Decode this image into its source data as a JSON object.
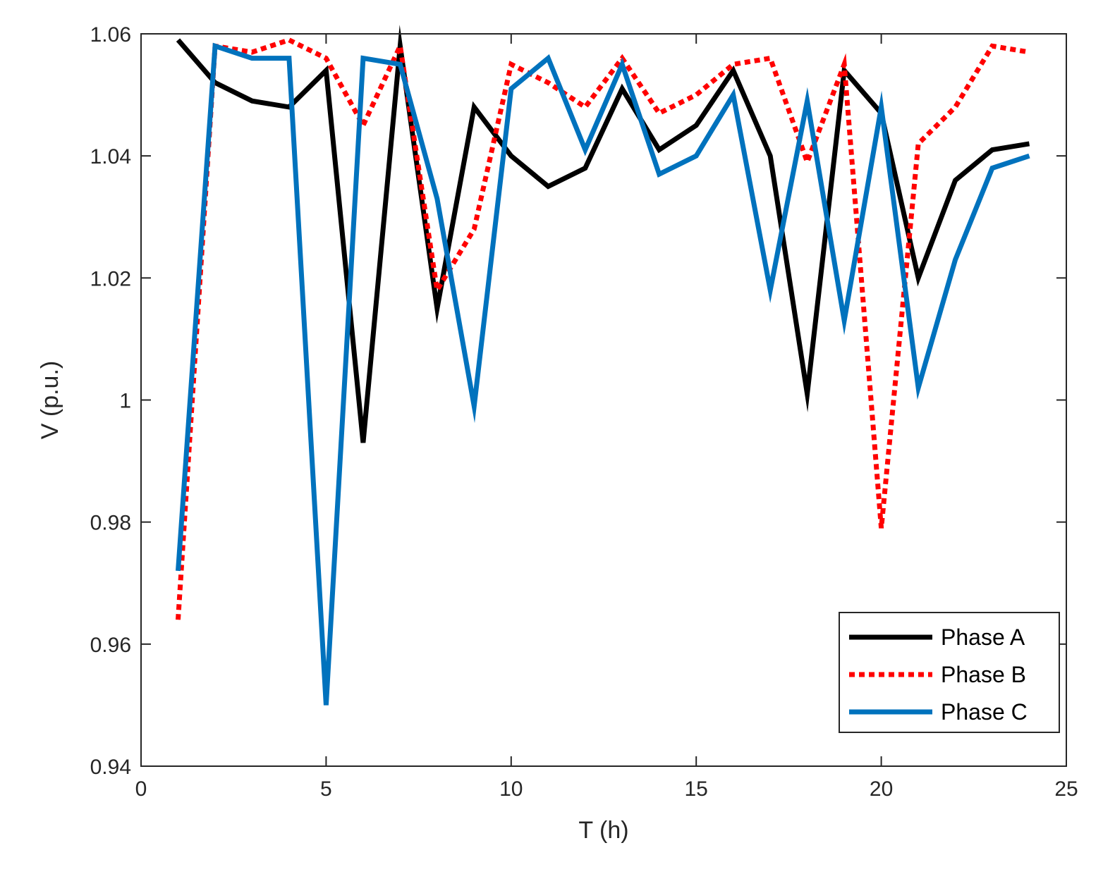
{
  "chart_data": {
    "type": "line",
    "xlabel": "T (h)",
    "ylabel": "V (p.u.)",
    "xlim": [
      0,
      25
    ],
    "ylim": [
      0.94,
      1.06
    ],
    "xticks": [
      0,
      5,
      10,
      15,
      20,
      25
    ],
    "xtick_labels": [
      "0",
      "5",
      "10",
      "15",
      "20",
      "25"
    ],
    "yticks": [
      0.94,
      0.96,
      0.98,
      1.0,
      1.02,
      1.04,
      1.06
    ],
    "ytick_labels": [
      "0.94",
      "0.96",
      "0.98",
      "1",
      "1.02",
      "1.04",
      "1.06"
    ],
    "grid": false,
    "legend_position": "bottom-right",
    "x": [
      1,
      2,
      3,
      4,
      5,
      6,
      7,
      8,
      9,
      10,
      11,
      12,
      13,
      14,
      15,
      16,
      17,
      18,
      19,
      20,
      21,
      22,
      23,
      24
    ],
    "series": [
      {
        "name": "Phase A",
        "color": "#000000",
        "style": "solid",
        "values": [
          1.059,
          1.052,
          1.049,
          1.048,
          1.054,
          0.993,
          1.058,
          1.015,
          1.048,
          1.04,
          1.035,
          1.038,
          1.051,
          1.041,
          1.045,
          1.054,
          1.04,
          1.001,
          1.054,
          1.047,
          1.02,
          1.036,
          1.041,
          1.042
        ]
      },
      {
        "name": "Phase B",
        "color": "#ff0000",
        "style": "dotted",
        "values": [
          0.964,
          1.058,
          1.057,
          1.059,
          1.056,
          1.045,
          1.058,
          1.018,
          1.028,
          1.055,
          1.052,
          1.048,
          1.056,
          1.047,
          1.05,
          1.055,
          1.056,
          1.039,
          1.055,
          0.979,
          1.042,
          1.048,
          1.058,
          1.057
        ]
      },
      {
        "name": "Phase C",
        "color": "#0072bd",
        "style": "solid",
        "values": [
          0.972,
          1.058,
          1.056,
          1.056,
          0.95,
          1.056,
          1.055,
          1.033,
          0.999,
          1.051,
          1.056,
          1.041,
          1.055,
          1.037,
          1.04,
          1.05,
          1.018,
          1.049,
          1.013,
          1.048,
          1.002,
          1.023,
          1.038,
          1.04
        ]
      }
    ]
  }
}
